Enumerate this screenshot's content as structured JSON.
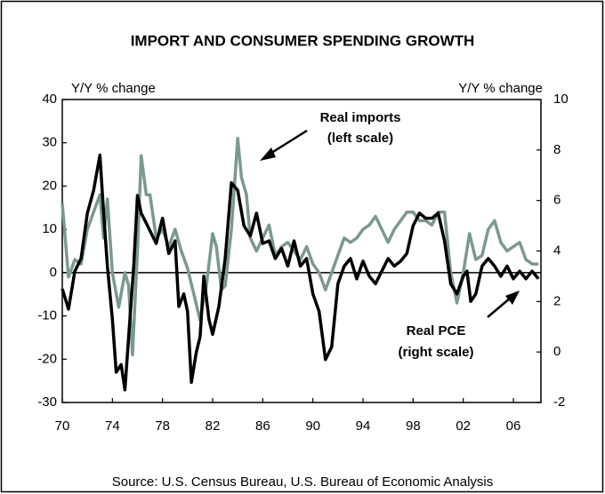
{
  "chart_data": {
    "type": "line",
    "title": "IMPORT AND CONSUMER SPENDING GROWTH",
    "y_label": "Y/Y % change",
    "y2_label": "Y/Y % change",
    "source": "Source: U.S. Census Bureau, U.S. Bureau of Economic Analysis",
    "annotations": [
      {
        "lines": [
          "Real imports",
          "(left scale)"
        ]
      },
      {
        "lines": [
          "Real PCE",
          "(right scale)"
        ]
      }
    ],
    "xlim": [
      1970,
      2008.2
    ],
    "xticks": [
      {
        "value": 1970,
        "label": "70"
      },
      {
        "value": 1974,
        "label": "74"
      },
      {
        "value": 1978,
        "label": "78"
      },
      {
        "value": 1982,
        "label": "82"
      },
      {
        "value": 1986,
        "label": "86"
      },
      {
        "value": 1990,
        "label": "90"
      },
      {
        "value": 1994,
        "label": "94"
      },
      {
        "value": 1998,
        "label": "98"
      },
      {
        "value": 2002,
        "label": "02"
      },
      {
        "value": 2006,
        "label": "06"
      }
    ],
    "ylim": [
      -30,
      40
    ],
    "yticks": [
      -30,
      -20,
      -10,
      0,
      10,
      20,
      30,
      40
    ],
    "y2lim": [
      -2,
      10
    ],
    "y2ticks": [
      -2,
      0,
      2,
      4,
      6,
      8,
      10
    ],
    "zero_line": true,
    "series": [
      {
        "name": "Real imports",
        "color": "#7a9a8c",
        "x": [
          1970.0,
          1970.5,
          1971.0,
          1971.5,
          1972.0,
          1972.5,
          1973.0,
          1973.3,
          1973.6,
          1974.0,
          1974.5,
          1975.0,
          1975.3,
          1975.6,
          1976.0,
          1976.3,
          1976.7,
          1977.0,
          1977.5,
          1978.0,
          1978.5,
          1979.0,
          1979.5,
          1980.0,
          1980.5,
          1981.0,
          1981.5,
          1982.0,
          1982.3,
          1982.7,
          1983.0,
          1983.5,
          1984.0,
          1984.3,
          1984.7,
          1985.0,
          1985.5,
          1986.0,
          1986.5,
          1987.0,
          1987.5,
          1988.0,
          1988.5,
          1989.0,
          1989.5,
          1990.0,
          1990.5,
          1991.0,
          1991.5,
          1992.0,
          1992.5,
          1993.0,
          1993.5,
          1994.0,
          1994.5,
          1995.0,
          1995.5,
          1996.0,
          1996.5,
          1997.0,
          1997.5,
          1998.0,
          1998.5,
          1999.0,
          1999.5,
          2000.0,
          2000.5,
          2001.0,
          2001.5,
          2002.0,
          2002.5,
          2003.0,
          2003.5,
          2004.0,
          2004.5,
          2005.0,
          2005.5,
          2006.0,
          2006.5,
          2007.0,
          2007.5,
          2008.0
        ],
        "values": [
          16,
          -1,
          3,
          2,
          10,
          14,
          18,
          8,
          17,
          0,
          -8,
          0,
          -3,
          -19,
          5,
          27,
          18,
          18,
          8,
          10,
          6,
          10,
          5,
          1,
          -5,
          -11,
          -3,
          9,
          6,
          -4,
          -3,
          10,
          31,
          22,
          18,
          8,
          5,
          8,
          11,
          4,
          6,
          7,
          5,
          3,
          6,
          2,
          0,
          -4,
          0,
          4,
          8,
          7,
          8,
          10,
          11,
          13,
          10,
          7,
          10,
          12,
          14,
          14,
          12,
          12,
          11,
          14,
          14,
          0,
          -7,
          0,
          9,
          3,
          4,
          10,
          12,
          7,
          5,
          6,
          7,
          3,
          2,
          2
        ]
      },
      {
        "name": "Real PCE",
        "color": "#000000",
        "axis": "y2",
        "x": [
          1970.0,
          1970.5,
          1971.0,
          1971.5,
          1972.0,
          1972.5,
          1973.0,
          1973.3,
          1973.6,
          1974.0,
          1974.3,
          1974.7,
          1975.0,
          1975.3,
          1975.7,
          1976.0,
          1976.3,
          1976.7,
          1977.0,
          1977.5,
          1978.0,
          1978.5,
          1979.0,
          1979.3,
          1979.7,
          1980.0,
          1980.3,
          1980.7,
          1981.0,
          1981.3,
          1981.7,
          1982.0,
          1982.5,
          1983.0,
          1983.5,
          1984.0,
          1984.5,
          1985.0,
          1985.5,
          1986.0,
          1986.5,
          1987.0,
          1987.5,
          1988.0,
          1988.5,
          1989.0,
          1989.5,
          1990.0,
          1990.5,
          1991.0,
          1991.5,
          1992.0,
          1992.5,
          1993.0,
          1993.5,
          1994.0,
          1994.5,
          1995.0,
          1995.5,
          1996.0,
          1996.5,
          1997.0,
          1997.5,
          1998.0,
          1998.5,
          1999.0,
          1999.5,
          2000.0,
          2000.5,
          2001.0,
          2001.5,
          2002.0,
          2002.3,
          2002.6,
          2003.0,
          2003.5,
          2004.0,
          2004.5,
          2005.0,
          2005.5,
          2006.0,
          2006.5,
          2007.0,
          2007.5,
          2008.0
        ],
        "values": [
          2.5,
          1.7,
          3.2,
          3.7,
          5.5,
          6.4,
          7.8,
          5.5,
          3.4,
          1.3,
          -0.8,
          -0.5,
          -1.5,
          0.6,
          3.4,
          6.2,
          5.5,
          5.1,
          4.8,
          4.3,
          5.3,
          3.9,
          4.4,
          1.8,
          2.3,
          1.6,
          -1.2,
          0.0,
          0.6,
          3.0,
          1.3,
          0.7,
          1.8,
          3.7,
          6.7,
          6.4,
          5.0,
          4.6,
          5.5,
          4.3,
          4.4,
          3.7,
          4.1,
          3.4,
          4.4,
          3.4,
          3.7,
          2.3,
          1.6,
          -0.3,
          0.2,
          2.7,
          3.4,
          3.7,
          2.9,
          3.6,
          3.0,
          2.7,
          3.2,
          3.7,
          3.4,
          3.6,
          3.9,
          5.0,
          5.5,
          5.3,
          5.3,
          5.5,
          4.4,
          2.7,
          2.3,
          3.0,
          3.2,
          2.0,
          2.3,
          3.4,
          3.7,
          3.4,
          3.0,
          3.4,
          2.9,
          3.2,
          2.9,
          3.2,
          2.9
        ]
      }
    ]
  }
}
